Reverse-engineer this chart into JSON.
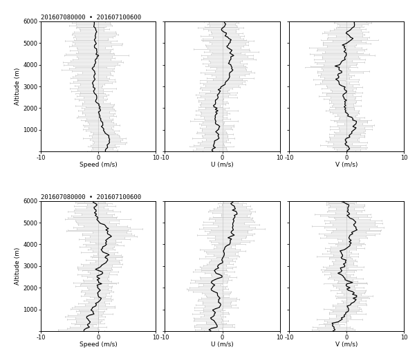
{
  "title": "201607080000 • 201607100600",
  "xlim": [
    -10,
    10
  ],
  "ylim": [
    0,
    6000
  ],
  "yticks": [
    0,
    1000,
    2000,
    3000,
    4000,
    5000,
    6000
  ],
  "xticks": [
    -10,
    0,
    10
  ],
  "xlabels": [
    "Speed (m/s)",
    "U (m/s)",
    "V (m/s)"
  ],
  "ylabel": "Altitude (m)",
  "bg_color": "#ffffff",
  "line_color_mean": "#000000",
  "line_color_err": "#aaaaaa",
  "n_points_upper": 100,
  "n_points_lower": 100
}
